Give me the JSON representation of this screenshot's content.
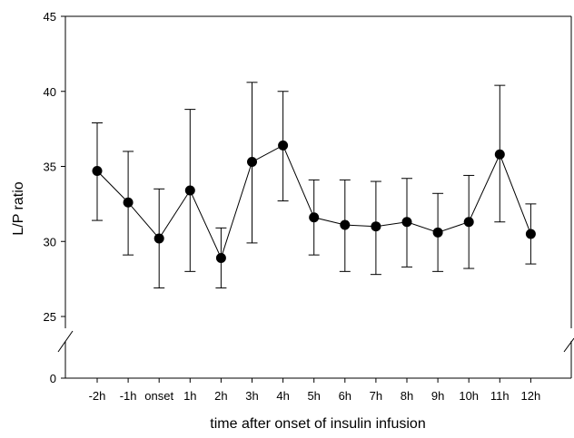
{
  "chart_data": {
    "type": "line",
    "title": "",
    "xlabel": "time after onset of insulin infusion",
    "ylabel": "L/P ratio",
    "categories": [
      "-2h",
      "-1h",
      "onset",
      "1h",
      "2h",
      "3h",
      "4h",
      "5h",
      "6h",
      "7h",
      "8h",
      "9h",
      "10h",
      "11h",
      "12h"
    ],
    "series": [
      {
        "values": [
          34.7,
          32.6,
          30.2,
          33.4,
          28.9,
          35.3,
          36.4,
          31.6,
          31.1,
          31.0,
          31.3,
          30.6,
          31.3,
          35.8,
          30.5
        ],
        "error_upper": [
          37.9,
          36.0,
          33.5,
          38.8,
          30.9,
          40.6,
          40.0,
          34.1,
          34.1,
          34.0,
          34.2,
          33.2,
          34.4,
          40.4,
          32.5
        ],
        "error_lower": [
          31.4,
          29.1,
          26.9,
          28.0,
          26.9,
          29.9,
          32.7,
          29.1,
          28.0,
          27.8,
          28.3,
          28.0,
          28.2,
          31.3,
          28.5
        ]
      }
    ],
    "ylim": [
      25,
      45
    ],
    "yticks": [
      25,
      30,
      35,
      40,
      45
    ],
    "yticks_below_break": [
      0
    ],
    "axis_break": "y",
    "grid": false,
    "legend": "none",
    "colors": {
      "line": "#000000",
      "marker": "#000000"
    }
  }
}
